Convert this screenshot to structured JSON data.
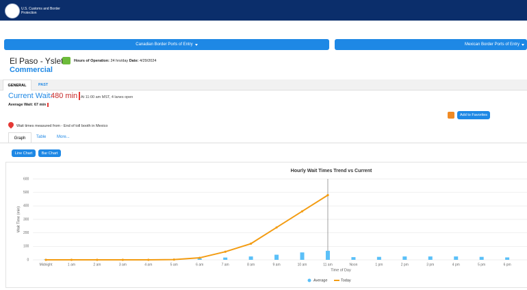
{
  "header": {
    "agency": "U.S. Customs and Border Protection"
  },
  "nav": {
    "canadian": "Canadian Border Ports of Entry",
    "mexican": "Mexican Border Ports of Entry"
  },
  "port": {
    "name": "El Paso - Ysleta",
    "hours_label": "Hours of Operation:",
    "hours": "24 hrs/day",
    "date_label": "Date:",
    "date": "4/29/2024",
    "lane_type": "Commercial"
  },
  "tabs": [
    "GENERAL",
    "PAST"
  ],
  "current": {
    "label": "Current Wait:",
    "value": "480 min",
    "note": "At 11:00 am MST, 4 lanes open",
    "average_label": "Average Wait:",
    "average": "67 min"
  },
  "favorites": "Add to Favorites",
  "measured": "Wait times measured from - End of toll booth in Mexico",
  "subtabs": [
    "Graph",
    "Table",
    "More..."
  ],
  "chart_buttons": [
    "Line Chart",
    "Bar Chart"
  ],
  "chart_data": {
    "type": "bar-line",
    "title": "Hourly Wait Times Trend vs Current",
    "x_label": "Time of Day",
    "y_label": "Wait Time (min)",
    "categories": [
      "Midnight",
      "1 am",
      "2 am",
      "3 am",
      "4 am",
      "5 am",
      "6 am",
      "7 am",
      "8 am",
      "9 am",
      "10 am",
      "11 am",
      "Noon",
      "1 pm",
      "2 pm",
      "3 pm",
      "4 pm",
      "5 pm",
      "6 pm"
    ],
    "series": [
      {
        "name": "Average",
        "kind": "bar",
        "color": "#5bc0f8",
        "values": [
          3,
          3,
          2,
          2,
          2,
          4,
          10,
          17,
          25,
          38,
          55,
          67,
          20,
          22,
          25,
          25,
          25,
          22,
          18
        ]
      },
      {
        "name": "Today",
        "kind": "line",
        "color": "#f39c12",
        "values": [
          0,
          0,
          0,
          0,
          0,
          2,
          15,
          60,
          120,
          240,
          360,
          480,
          null,
          null,
          null,
          null,
          null,
          null,
          null
        ]
      }
    ],
    "current_index": 11,
    "ylim": [
      0,
      600
    ],
    "yticks": [
      0,
      100,
      200,
      300,
      400,
      500,
      600
    ],
    "grid": true,
    "legend": "bottom"
  }
}
